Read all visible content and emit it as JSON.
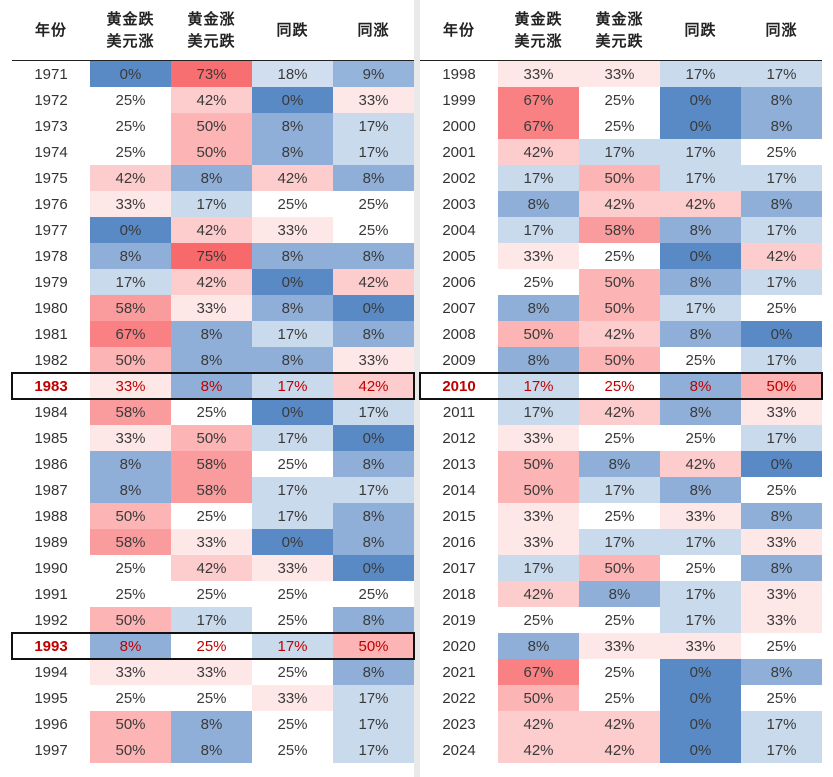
{
  "headers": [
    "年份",
    "黄金跌\n美元涨",
    "黄金涨\n美元跌",
    "同跌",
    "同涨"
  ],
  "legend_colors": {
    "red_max": "#f8696b",
    "white": "#ffffff",
    "blue_max": "#5a8ac6"
  },
  "highlight_years": [
    "1983",
    "1993",
    "2010"
  ],
  "chart_data": {
    "type": "table",
    "columns": [
      "年份",
      "黄金跌美元涨",
      "黄金涨美元跌",
      "同跌",
      "同涨"
    ],
    "left_rows": [
      [
        "1971",
        "0%",
        "73%",
        "18%",
        "9%"
      ],
      [
        "1972",
        "25%",
        "42%",
        "0%",
        "33%"
      ],
      [
        "1973",
        "25%",
        "50%",
        "8%",
        "17%"
      ],
      [
        "1974",
        "25%",
        "50%",
        "8%",
        "17%"
      ],
      [
        "1975",
        "42%",
        "8%",
        "42%",
        "8%"
      ],
      [
        "1976",
        "33%",
        "17%",
        "25%",
        "25%"
      ],
      [
        "1977",
        "0%",
        "42%",
        "33%",
        "25%"
      ],
      [
        "1978",
        "8%",
        "75%",
        "8%",
        "8%"
      ],
      [
        "1979",
        "17%",
        "42%",
        "0%",
        "42%"
      ],
      [
        "1980",
        "58%",
        "33%",
        "8%",
        "0%"
      ],
      [
        "1981",
        "67%",
        "8%",
        "17%",
        "8%"
      ],
      [
        "1982",
        "50%",
        "8%",
        "8%",
        "33%"
      ],
      [
        "1983",
        "33%",
        "8%",
        "17%",
        "42%"
      ],
      [
        "1984",
        "58%",
        "25%",
        "0%",
        "17%"
      ],
      [
        "1985",
        "33%",
        "50%",
        "17%",
        "0%"
      ],
      [
        "1986",
        "8%",
        "58%",
        "25%",
        "8%"
      ],
      [
        "1987",
        "8%",
        "58%",
        "17%",
        "17%"
      ],
      [
        "1988",
        "50%",
        "25%",
        "17%",
        "8%"
      ],
      [
        "1989",
        "58%",
        "33%",
        "0%",
        "8%"
      ],
      [
        "1990",
        "25%",
        "42%",
        "33%",
        "0%"
      ],
      [
        "1991",
        "25%",
        "25%",
        "25%",
        "25%"
      ],
      [
        "1992",
        "50%",
        "17%",
        "25%",
        "8%"
      ],
      [
        "1993",
        "8%",
        "25%",
        "17%",
        "50%"
      ],
      [
        "1994",
        "33%",
        "33%",
        "25%",
        "8%"
      ],
      [
        "1995",
        "25%",
        "25%",
        "33%",
        "17%"
      ],
      [
        "1996",
        "50%",
        "8%",
        "25%",
        "17%"
      ],
      [
        "1997",
        "50%",
        "8%",
        "25%",
        "17%"
      ]
    ],
    "right_rows": [
      [
        "1998",
        "33%",
        "33%",
        "17%",
        "17%"
      ],
      [
        "1999",
        "67%",
        "25%",
        "0%",
        "8%"
      ],
      [
        "2000",
        "67%",
        "25%",
        "0%",
        "8%"
      ],
      [
        "2001",
        "42%",
        "17%",
        "17%",
        "25%"
      ],
      [
        "2002",
        "17%",
        "50%",
        "17%",
        "17%"
      ],
      [
        "2003",
        "8%",
        "42%",
        "42%",
        "8%"
      ],
      [
        "2004",
        "17%",
        "58%",
        "8%",
        "17%"
      ],
      [
        "2005",
        "33%",
        "25%",
        "0%",
        "42%"
      ],
      [
        "2006",
        "25%",
        "50%",
        "8%",
        "17%"
      ],
      [
        "2007",
        "8%",
        "50%",
        "17%",
        "25%"
      ],
      [
        "2008",
        "50%",
        "42%",
        "8%",
        "0%"
      ],
      [
        "2009",
        "8%",
        "50%",
        "25%",
        "17%"
      ],
      [
        "2010",
        "17%",
        "25%",
        "8%",
        "50%"
      ],
      [
        "2011",
        "17%",
        "42%",
        "8%",
        "33%"
      ],
      [
        "2012",
        "33%",
        "25%",
        "25%",
        "17%"
      ],
      [
        "2013",
        "50%",
        "8%",
        "42%",
        "0%"
      ],
      [
        "2014",
        "50%",
        "17%",
        "8%",
        "25%"
      ],
      [
        "2015",
        "33%",
        "25%",
        "33%",
        "8%"
      ],
      [
        "2016",
        "33%",
        "17%",
        "17%",
        "33%"
      ],
      [
        "2017",
        "17%",
        "50%",
        "25%",
        "8%"
      ],
      [
        "2018",
        "42%",
        "8%",
        "17%",
        "33%"
      ],
      [
        "2019",
        "25%",
        "25%",
        "17%",
        "33%"
      ],
      [
        "2020",
        "8%",
        "33%",
        "33%",
        "25%"
      ],
      [
        "2021",
        "67%",
        "25%",
        "0%",
        "8%"
      ],
      [
        "2022",
        "50%",
        "25%",
        "0%",
        "25%"
      ],
      [
        "2023",
        "42%",
        "42%",
        "0%",
        "17%"
      ],
      [
        "2024",
        "42%",
        "42%",
        "0%",
        "17%"
      ]
    ]
  }
}
